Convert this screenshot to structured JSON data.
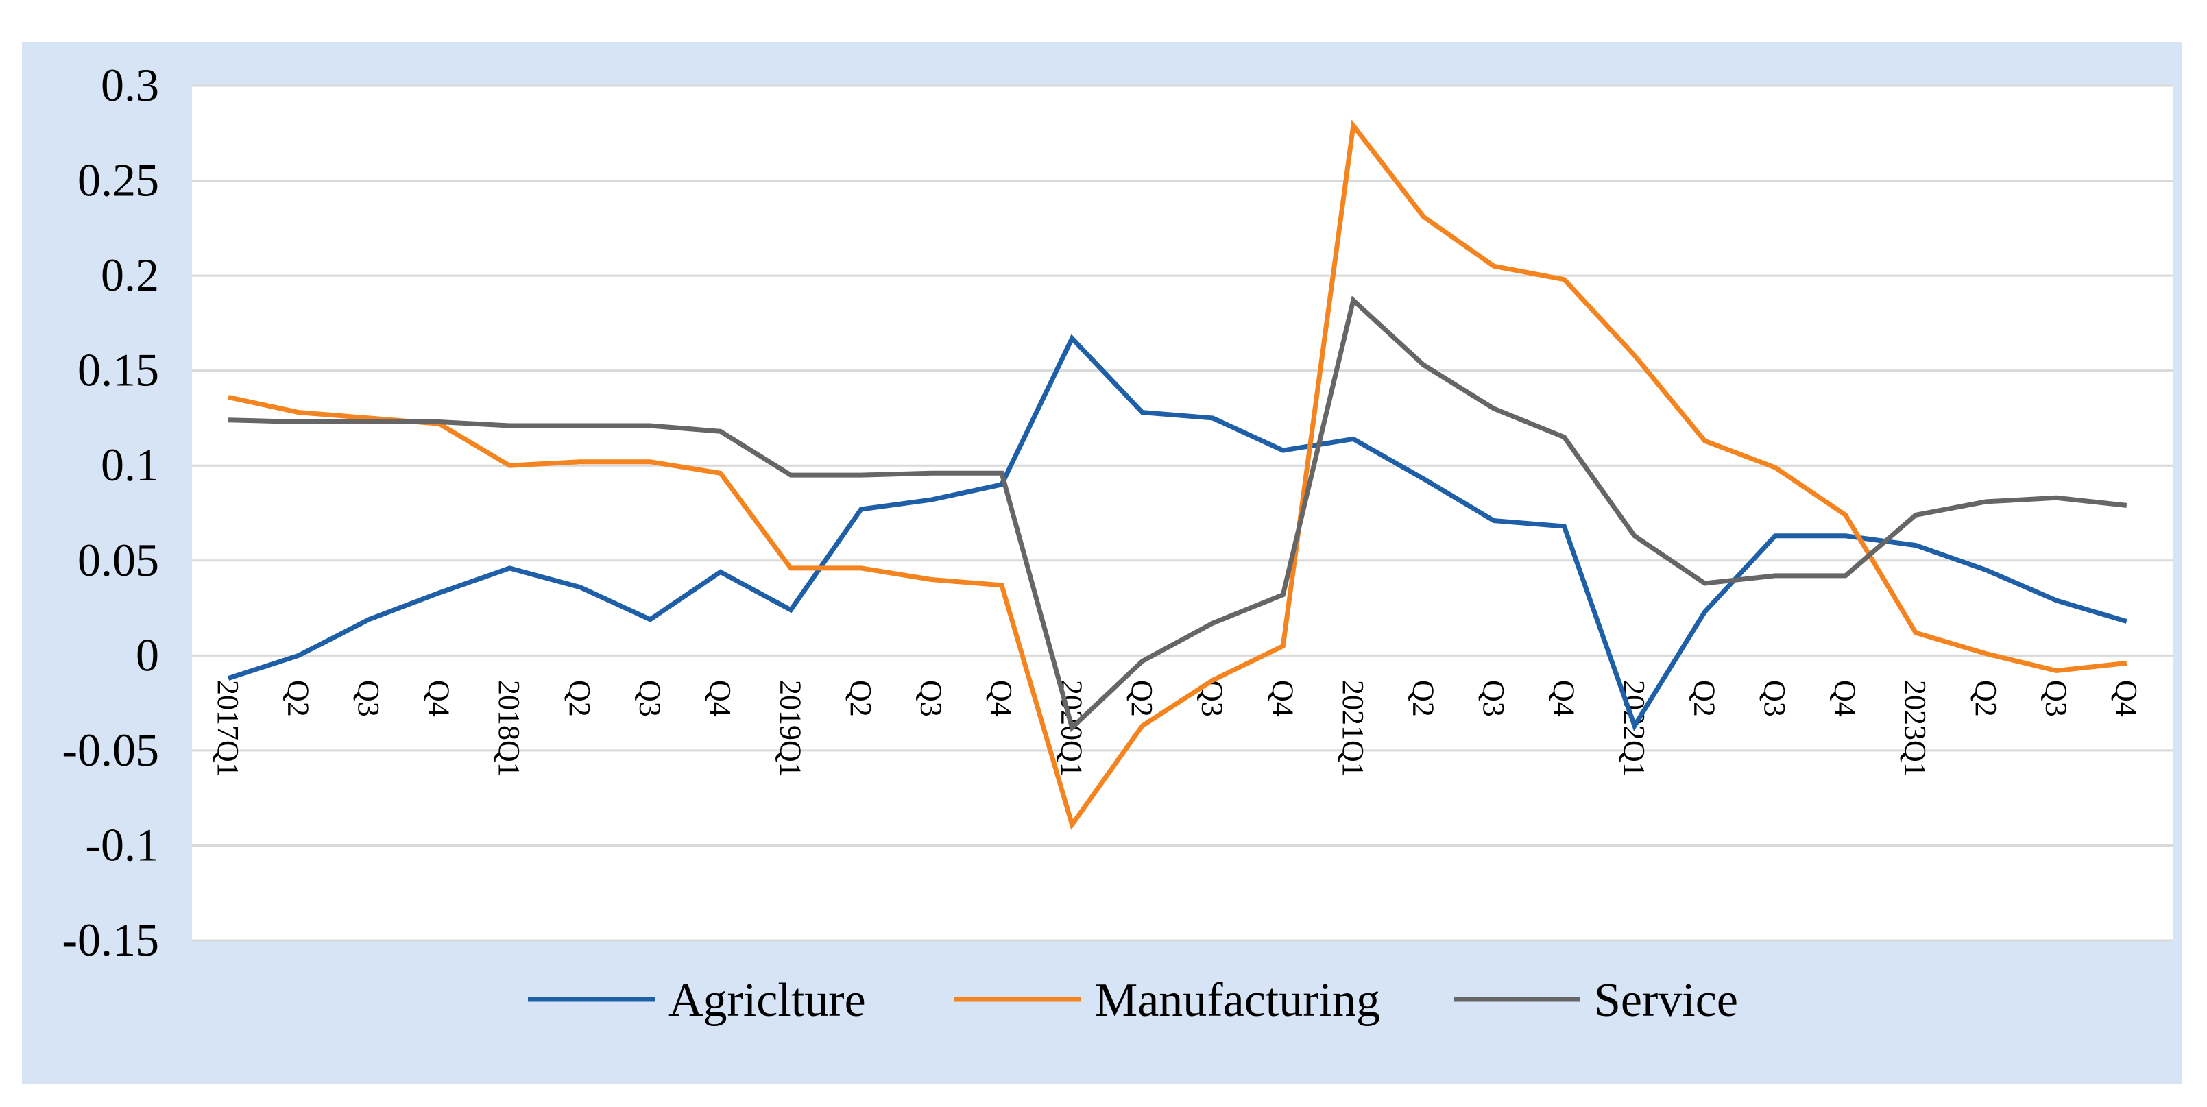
{
  "chart_data": {
    "type": "line",
    "x": [
      "2017Q1",
      "Q2",
      "Q3",
      "Q4",
      "2018Q1",
      "Q2",
      "Q3",
      "Q4",
      "2019Q1",
      "Q2",
      "Q3",
      "Q4",
      "2020Q1",
      "Q2",
      "Q3",
      "Q4",
      "2021Q1",
      "Q2",
      "Q3",
      "Q4",
      "2022Q1",
      "Q2",
      "Q3",
      "Q4",
      "2023Q1",
      "Q2",
      "Q3",
      "Q4"
    ],
    "series": [
      {
        "name": "Agriclture",
        "color": "#1f5fa8",
        "values": [
          -0.012,
          0.0,
          0.019,
          0.033,
          0.046,
          0.036,
          0.019,
          0.044,
          0.024,
          0.077,
          0.082,
          0.09,
          0.167,
          0.128,
          0.125,
          0.108,
          0.114,
          0.093,
          0.071,
          0.068,
          -0.037,
          0.023,
          0.063,
          0.063,
          0.058,
          0.045,
          0.029,
          0.018
        ]
      },
      {
        "name": "Manufacturing",
        "color": "#f4841f",
        "values": [
          0.136,
          0.128,
          0.125,
          0.122,
          0.1,
          0.102,
          0.102,
          0.096,
          0.046,
          0.046,
          0.04,
          0.037,
          -0.089,
          -0.037,
          -0.013,
          0.005,
          0.279,
          0.231,
          0.205,
          0.198,
          0.158,
          0.113,
          0.099,
          0.074,
          0.012,
          0.001,
          -0.008,
          -0.004
        ]
      },
      {
        "name": "Service",
        "color": "#666666",
        "values": [
          0.124,
          0.123,
          0.123,
          0.123,
          0.121,
          0.121,
          0.121,
          0.118,
          0.095,
          0.095,
          0.096,
          0.096,
          -0.038,
          -0.003,
          0.017,
          0.032,
          0.187,
          0.153,
          0.13,
          0.115,
          0.063,
          0.038,
          0.042,
          0.042,
          0.074,
          0.081,
          0.083,
          0.079
        ]
      }
    ],
    "ylim": [
      -0.15,
      0.3
    ],
    "yticks": [
      "0.3",
      "0.25",
      "0.2",
      "0.15",
      "0.1",
      "0.05",
      "0",
      "-0.05",
      "-0.1",
      "-0.15"
    ],
    "ytick_values": [
      0.3,
      0.25,
      0.2,
      0.15,
      0.1,
      0.05,
      0,
      -0.05,
      -0.1,
      -0.15
    ],
    "grid": true,
    "legend": "bottom-center",
    "colors": {
      "outer_background": "#d6e4f5",
      "plot_background": "#ffffff",
      "grid": "#d9d9d9"
    }
  }
}
